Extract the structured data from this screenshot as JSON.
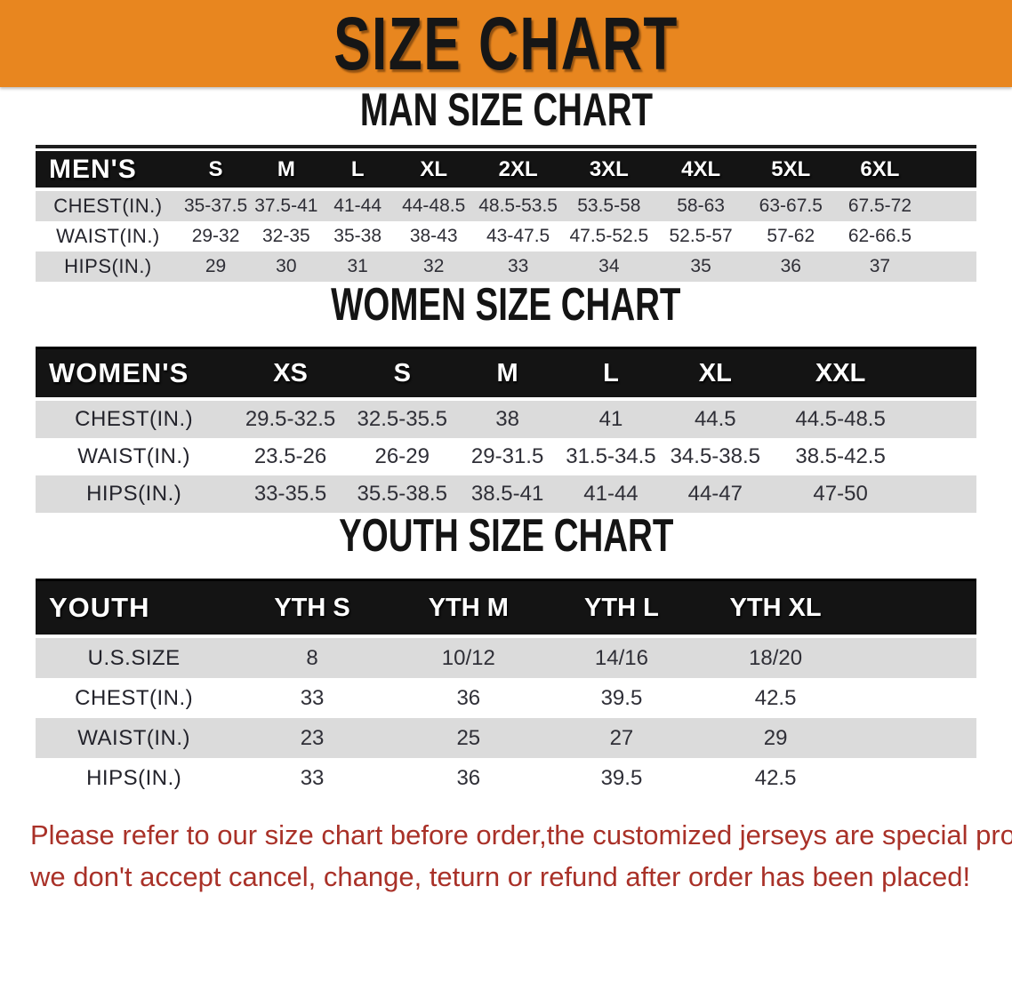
{
  "banner": {
    "title": "SIZE CHART",
    "bg_color": "#e8861f",
    "text_color": "#161616"
  },
  "sections": [
    {
      "id": "men",
      "title": "MAN SIZE CHART",
      "header_label": "MEN'S",
      "columns": [
        "S",
        "M",
        "L",
        "XL",
        "2XL",
        "3XL",
        "4XL",
        "5XL",
        "6XL"
      ],
      "rows": [
        {
          "label": "CHEST(IN.)",
          "values": [
            "35-37.5",
            "37.5-41",
            "41-44",
            "44-48.5",
            "48.5-53.5",
            "53.5-58",
            "58-63",
            "63-67.5",
            "67.5-72"
          ]
        },
        {
          "label": "WAIST(IN.)",
          "values": [
            "29-32",
            "32-35",
            "35-38",
            "38-43",
            "43-47.5",
            "47.5-52.5",
            "52.5-57",
            "57-62",
            "62-66.5"
          ]
        },
        {
          "label": "HIPS(IN.)",
          "values": [
            "29",
            "30",
            "31",
            "32",
            "33",
            "34",
            "35",
            "36",
            "37"
          ]
        }
      ]
    },
    {
      "id": "women",
      "title": "WOMEN SIZE CHART",
      "header_label": "WOMEN'S",
      "columns": [
        "XS",
        "S",
        "M",
        "L",
        "XL",
        "XXL"
      ],
      "rows": [
        {
          "label": "CHEST(IN.)",
          "values": [
            "29.5-32.5",
            "32.5-35.5",
            "38",
            "41",
            "44.5",
            "44.5-48.5"
          ]
        },
        {
          "label": "WAIST(IN.)",
          "values": [
            "23.5-26",
            "26-29",
            "29-31.5",
            "31.5-34.5",
            "34.5-38.5",
            "38.5-42.5"
          ]
        },
        {
          "label": "HIPS(IN.)",
          "values": [
            "33-35.5",
            "35.5-38.5",
            "38.5-41",
            "41-44",
            "44-47",
            "47-50"
          ]
        }
      ]
    },
    {
      "id": "youth",
      "title": "YOUTH SIZE CHART",
      "header_label": "YOUTH",
      "columns": [
        "YTH S",
        "YTH M",
        "YTH L",
        "YTH XL"
      ],
      "rows": [
        {
          "label": "U.S.SIZE",
          "values": [
            "8",
            "10/12",
            "14/16",
            "18/20"
          ]
        },
        {
          "label": "CHEST(IN.)",
          "values": [
            "33",
            "36",
            "39.5",
            "42.5"
          ]
        },
        {
          "label": "WAIST(IN.)",
          "values": [
            "23",
            "25",
            "27",
            "29"
          ]
        },
        {
          "label": "HIPS(IN.)",
          "values": [
            "33",
            "36",
            "39.5",
            "42.5"
          ]
        }
      ]
    }
  ],
  "table_style": {
    "header_bg": "#141414",
    "stripe_color": "#dbdbdb"
  },
  "footer": {
    "line1": "Please refer to our size chart before order,the customized jerseys are special products,",
    "line2": "we don't accept cancel, change, teturn or refund after order has been placed!",
    "text_color": "#a93128"
  }
}
